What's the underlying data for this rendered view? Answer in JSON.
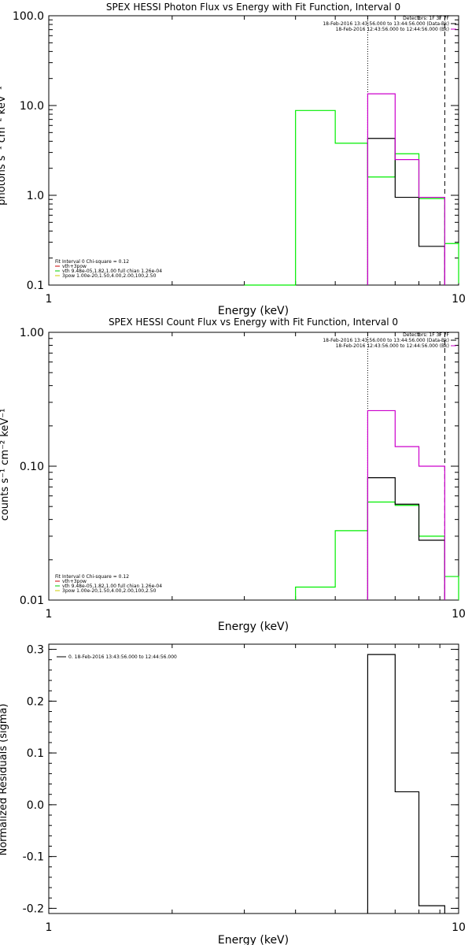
{
  "chart_data": [
    {
      "type": "line",
      "title": "SPEX HESSI Photon Flux vs Energy with Fit Function, Interval 0",
      "xlabel": "Energy (keV)",
      "ylabel": "photons s⁻¹ cm⁻² keV⁻¹",
      "xscale": "log",
      "yscale": "log",
      "xlim": [
        1,
        10
      ],
      "ylim": [
        0.1,
        100
      ],
      "xticks": [
        "1",
        "10"
      ],
      "yticks": [
        "0.1",
        "1.0",
        "10.0",
        "100.0"
      ],
      "vlines": [
        {
          "x": 6,
          "style": "dotted"
        },
        {
          "x": 9.25,
          "style": "dashed"
        }
      ],
      "legend_top": [
        "Detectors: 1F 3F 7F",
        "18-Feb-2016 13:43:56.000 to 13:44:56.000 (Data-Bk)",
        "18-Feb-2016 12:43:56.000 to 12:44:56.000 (Bk)"
      ],
      "legend_top_colors": [
        "",
        "#000000",
        "#cc00cc"
      ],
      "legend_bottom": [
        "Fit Interval 0   Chi-square = 0.12",
        "vth+3pow",
        "vth 9.48e-05,1.82,1.00   full chian 1.26e-04",
        "3pow 1.00e-20,1.50,4.00,2.00,100,2.50"
      ],
      "legend_bottom_colors": [
        "",
        "#cc0000",
        "#00cc00",
        "#cccc00"
      ],
      "series": [
        {
          "color": "#00ee00",
          "edges": [
            3,
            4,
            5,
            6,
            7,
            8,
            9.25,
            10
          ],
          "values": [
            0.1,
            8.8,
            3.8,
            1.6,
            2.9,
            0.92,
            0.29,
            0.105
          ]
        },
        {
          "color": "#000000",
          "edges": [
            6,
            7,
            8,
            9.25
          ],
          "values": [
            4.3,
            0.95,
            0.27
          ],
          "drop": true
        },
        {
          "color": "#cc00cc",
          "edges": [
            6,
            7,
            8,
            9.25
          ],
          "values": [
            13.5,
            2.5,
            0.95
          ],
          "drop": true
        }
      ]
    },
    {
      "type": "line",
      "title": "SPEX HESSI Count Flux vs Energy with Fit Function, Interval 0",
      "xlabel": "Energy (keV)",
      "ylabel": "counts s⁻¹ cm⁻² keV⁻¹",
      "xscale": "log",
      "yscale": "log",
      "xlim": [
        1,
        10
      ],
      "ylim": [
        0.01,
        1
      ],
      "xticks": [
        "1",
        "10"
      ],
      "yticks": [
        "0.01",
        "0.10",
        "1.00"
      ],
      "vlines": [
        {
          "x": 6,
          "style": "dotted"
        },
        {
          "x": 9.25,
          "style": "dashed"
        }
      ],
      "legend_top": [
        "Detectors: 1F 3F 7F",
        "18-Feb-2016 13:43:56.000 to 13:44:56.000 (Data-Bk)",
        "18-Feb-2016 12:43:56.000 to 12:44:56.000 (Bk)"
      ],
      "legend_top_colors": [
        "",
        "#000000",
        "#cc00cc"
      ],
      "legend_bottom": [
        "Fit Interval 0   Chi-square = 0.12",
        "vth+3pow",
        "vth 9.48e-05,1.82,1.00   full chian 1.26e-04",
        "3pow 1.00e-20,1.50,4.00,2.00,100,2.50"
      ],
      "legend_bottom_colors": [
        "",
        "#cc0000",
        "#00cc00",
        "#cccc00"
      ],
      "series": [
        {
          "color": "#00ee00",
          "edges": [
            4,
            5,
            6,
            7,
            8,
            9.25,
            10
          ],
          "values": [
            0.0125,
            0.033,
            0.054,
            0.051,
            0.03,
            0.015
          ],
          "drop": true
        },
        {
          "color": "#000000",
          "edges": [
            6,
            7,
            8,
            9.25
          ],
          "values": [
            0.082,
            0.052,
            0.028
          ],
          "drop": true
        },
        {
          "color": "#cc00cc",
          "edges": [
            6,
            7,
            8,
            9.25
          ],
          "values": [
            0.26,
            0.14,
            0.1
          ],
          "drop": true
        }
      ]
    },
    {
      "type": "line",
      "title": "",
      "xlabel": "Energy (keV)",
      "ylabel": "Normalized Residuals (sigma)",
      "xscale": "log",
      "yscale": "linear",
      "xlim": [
        1,
        10
      ],
      "ylim": [
        -0.21,
        0.31
      ],
      "xticks": [
        "1",
        "10"
      ],
      "yticks": [
        "-0.2",
        "-0.1",
        "0.0",
        "0.1",
        "0.2",
        "0.3"
      ],
      "legend_top_left": [
        "0. 18-Feb-2016 13:43:56.000 to 12:44:56.000"
      ],
      "series": [
        {
          "color": "#000000",
          "edges": [
            6,
            7,
            8,
            9.25
          ],
          "values": [
            0.29,
            0.025,
            -0.195
          ],
          "drop": true,
          "base": -0.21
        }
      ]
    }
  ]
}
